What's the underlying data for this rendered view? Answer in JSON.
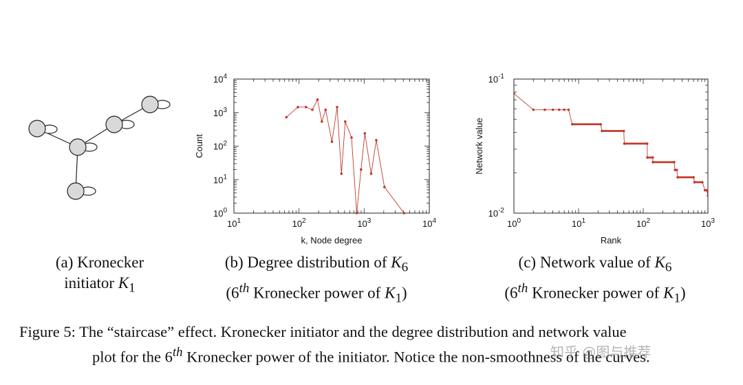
{
  "panel_a": {
    "caption_line1": "(a) Kronecker",
    "caption_line2_text": "initiator ",
    "caption_line2_var": "K",
    "caption_line2_sub": "1"
  },
  "panel_b": {
    "caption_line1_text": "(b) Degree distribution of ",
    "caption_line1_var": "K",
    "caption_line1_sub": "6",
    "caption_line2_pre": "(6",
    "caption_line2_sup": "th",
    "caption_line2_mid": " Kronecker power of ",
    "caption_line2_var": "K",
    "caption_line2_sub": "1",
    "caption_line2_post": ")"
  },
  "panel_c": {
    "caption_line1_text": "(c) Network value of ",
    "caption_line1_var": "K",
    "caption_line1_sub": "6",
    "caption_line2_pre": "(6",
    "caption_line2_sup": "th",
    "caption_line2_mid": " Kronecker power of ",
    "caption_line2_var": "K",
    "caption_line2_sub": "1",
    "caption_line2_post": ")"
  },
  "figure_caption": {
    "line1": "Figure 5:  The “staircase” effect. Kronecker initiator and the degree distribution and network value",
    "line2_pre": "plot for the 6",
    "line2_sup": "th",
    "line2_post": " Kronecker power of the initiator. Notice the non-smoothness of the curves."
  },
  "watermark": "知乎 @图与推荐",
  "chart_data": [
    {
      "type": "line",
      "xlabel": "k, Node degree",
      "ylabel": "Count",
      "xscale": "log",
      "yscale": "log",
      "xlim": [
        10,
        10000
      ],
      "ylim": [
        1,
        10000
      ],
      "xticks": [
        {
          "base": "10",
          "exp": "1"
        },
        {
          "base": "10",
          "exp": "2"
        },
        {
          "base": "10",
          "exp": "3"
        },
        {
          "base": "10",
          "exp": "4"
        }
      ],
      "yticks": [
        {
          "base": "10",
          "exp": "0"
        },
        {
          "base": "10",
          "exp": "1"
        },
        {
          "base": "10",
          "exp": "2"
        },
        {
          "base": "10",
          "exp": "3"
        },
        {
          "base": "10",
          "exp": "4"
        }
      ],
      "color": "#c0392b",
      "x": [
        64,
        96,
        128,
        160,
        192,
        224,
        256,
        320,
        384,
        448,
        512,
        640,
        768,
        896,
        1024,
        1280,
        1536,
        2048,
        4096
      ],
      "y": [
        729,
        1458,
        1458,
        1215,
        2430,
        540,
        1215,
        135,
        1458,
        15,
        540,
        180,
        1,
        20,
        240,
        15,
        150,
        6,
        1
      ]
    },
    {
      "type": "line",
      "xlabel": "Rank",
      "ylabel": "Network value",
      "xscale": "log",
      "yscale": "log",
      "xlim": [
        1,
        1000
      ],
      "ylim": [
        0.01,
        0.1
      ],
      "xticks": [
        {
          "base": "10",
          "exp": "0"
        },
        {
          "base": "10",
          "exp": "1"
        },
        {
          "base": "10",
          "exp": "2"
        },
        {
          "base": "10",
          "exp": "3"
        }
      ],
      "yticks": [
        {
          "base": "10",
          "exp": "-2"
        },
        {
          "base": "10",
          "exp": "-1"
        }
      ],
      "color": "#c0392b",
      "x": [
        1,
        2,
        3,
        4,
        5,
        6,
        7,
        8,
        22,
        23,
        50,
        51,
        115,
        116,
        140,
        141,
        300,
        310,
        330,
        340,
        600,
        620,
        820,
        900,
        960,
        1000
      ],
      "y": [
        0.078,
        0.059,
        0.059,
        0.059,
        0.059,
        0.059,
        0.059,
        0.046,
        0.046,
        0.041,
        0.041,
        0.033,
        0.033,
        0.026,
        0.026,
        0.024,
        0.024,
        0.021,
        0.021,
        0.0185,
        0.0185,
        0.017,
        0.017,
        0.0148,
        0.0148,
        0.0135
      ]
    }
  ]
}
